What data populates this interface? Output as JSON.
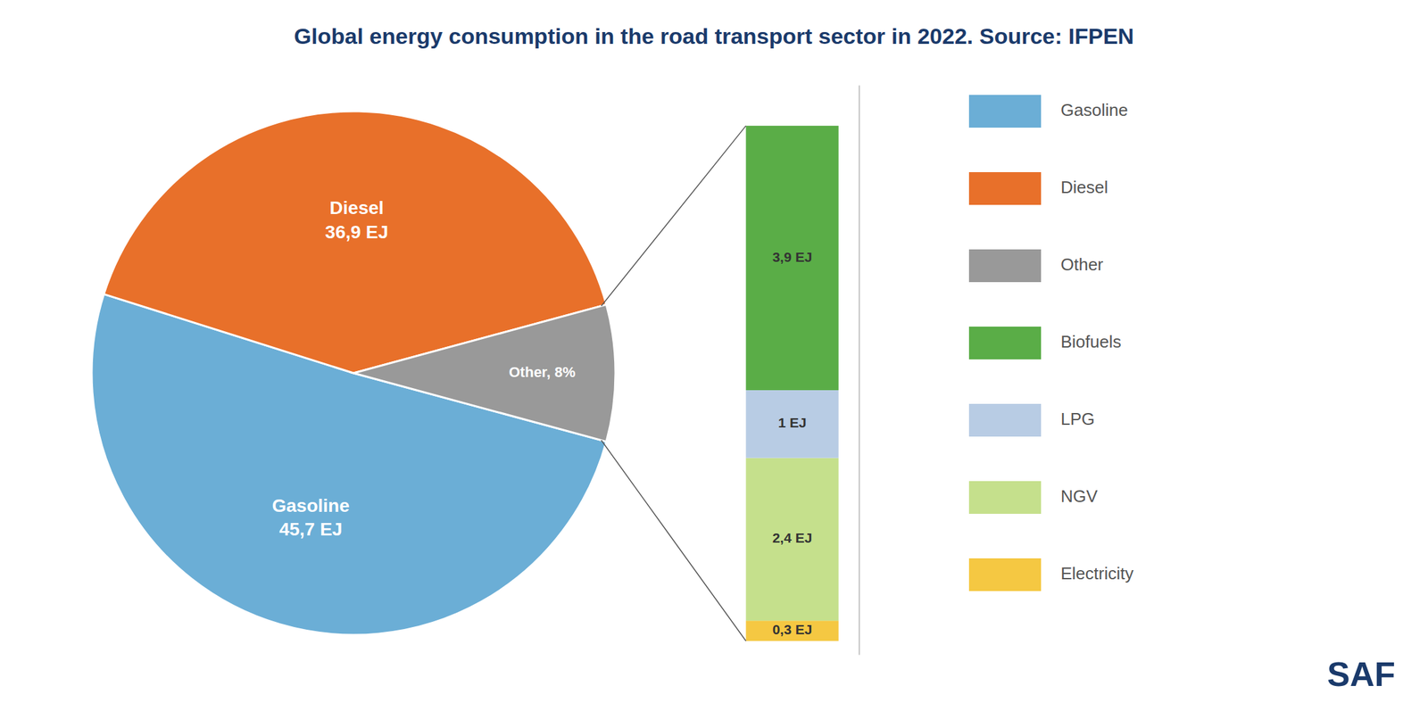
{
  "chart_data": [
    {
      "type": "pie",
      "title": "Global energy consumption in the road transport sector in 2022. Source: IFPEN",
      "annotations": [
        "SAF"
      ],
      "categories": [
        "Gasoline",
        "Diesel",
        "Other"
      ],
      "values": [
        45.7,
        36.9,
        7.6
      ],
      "value_labels": [
        "Gasoline\n45,7 EJ",
        "Diesel\n36,9 EJ",
        "Other, 8%"
      ],
      "colors": [
        "#6baed6",
        "#e8702a",
        "#999999"
      ],
      "legend": "right"
    },
    {
      "type": "bar",
      "stacked": true,
      "categories": [
        null
      ],
      "series": [
        {
          "name": "Electricity",
          "color": "#f5c842",
          "values": [
            0.3
          ],
          "value_labels": [
            "0,3 EJ"
          ]
        },
        {
          "name": "NGV",
          "color": "#c5e08c",
          "values": [
            2.4
          ],
          "value_labels": [
            "2,4 EJ"
          ]
        },
        {
          "name": "LPG",
          "color": "#b8cce4",
          "values": [
            1.0
          ],
          "value_labels": [
            "1 EJ"
          ]
        },
        {
          "name": "Biofuels",
          "color": "#5aad47",
          "values": [
            3.9
          ],
          "value_labels": [
            "3,9 EJ"
          ]
        }
      ],
      "ylim": [
        -0.2,
        8.2
      ],
      "tick_labels": false,
      "legend": "right"
    }
  ]
}
